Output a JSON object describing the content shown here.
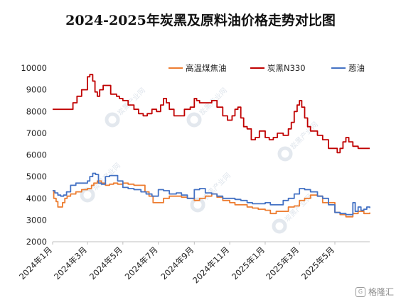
{
  "chart_data": {
    "type": "line",
    "title": "2024-2025年炭黑及原料油价格走势对比图",
    "xlabel": "",
    "ylabel": "",
    "ylim": [
      2000,
      10000
    ],
    "yticks": [
      2000,
      3000,
      4000,
      5000,
      6000,
      7000,
      8000,
      9000,
      10000
    ],
    "xticks": [
      "2024年1月",
      "2024年3月",
      "2024年5月",
      "2024年7月",
      "2024年9月",
      "2024年11月",
      "2025年1月",
      "2025年3月",
      "2025年5月"
    ],
    "x_range": [
      "2024-01-01",
      "2025-06-30"
    ],
    "grid": false,
    "legend_position": "top-right",
    "series": [
      {
        "name": "高温煤焦油",
        "color": "#ed7d31",
        "dates": [
          "2024-01-01",
          "2024-01-03",
          "2024-01-07",
          "2024-01-10",
          "2024-01-14",
          "2024-01-18",
          "2024-01-22",
          "2024-01-26",
          "2024-02-01",
          "2024-02-10",
          "2024-02-20",
          "2024-03-01",
          "2024-03-08",
          "2024-03-12",
          "2024-03-18",
          "2024-03-25",
          "2024-04-01",
          "2024-04-08",
          "2024-04-15",
          "2024-04-22",
          "2024-05-01",
          "2024-05-10",
          "2024-05-20",
          "2024-06-01",
          "2024-06-08",
          "2024-06-15",
          "2024-06-22",
          "2024-07-01",
          "2024-07-10",
          "2024-07-20",
          "2024-08-01",
          "2024-08-10",
          "2024-08-20",
          "2024-09-01",
          "2024-09-10",
          "2024-09-20",
          "2024-10-01",
          "2024-10-10",
          "2024-10-20",
          "2024-11-01",
          "2024-11-10",
          "2024-11-20",
          "2024-12-01",
          "2024-12-10",
          "2024-12-20",
          "2025-01-01",
          "2025-01-10",
          "2025-01-20",
          "2025-02-01",
          "2025-02-10",
          "2025-02-20",
          "2025-03-01",
          "2025-03-10",
          "2025-03-20",
          "2025-04-01",
          "2025-04-10",
          "2025-04-20",
          "2025-05-01",
          "2025-05-10",
          "2025-05-20",
          "2025-06-01",
          "2025-06-10",
          "2025-06-20",
          "2025-06-30"
        ],
        "values": [
          4350,
          4000,
          3850,
          3600,
          3600,
          3800,
          4000,
          4100,
          4200,
          4300,
          4400,
          4450,
          4600,
          4700,
          4800,
          4700,
          4600,
          4650,
          4700,
          4650,
          4700,
          4650,
          4600,
          4600,
          4300,
          4100,
          3800,
          3800,
          4000,
          4100,
          4100,
          4050,
          4000,
          3900,
          4000,
          4100,
          4200,
          4050,
          3900,
          3800,
          3700,
          3700,
          3600,
          3550,
          3500,
          3450,
          3300,
          3400,
          3400,
          3600,
          3650,
          3900,
          4000,
          4150,
          4100,
          3800,
          3800,
          3350,
          3250,
          3150,
          3300,
          3400,
          3300,
          3350
        ]
      },
      {
        "name": "炭黑N330",
        "color": "#c00000",
        "dates": [
          "2024-01-01",
          "2024-01-15",
          "2024-01-28",
          "2024-02-05",
          "2024-02-12",
          "2024-02-20",
          "2024-02-26",
          "2024-03-01",
          "2024-03-05",
          "2024-03-10",
          "2024-03-14",
          "2024-03-18",
          "2024-03-22",
          "2024-03-28",
          "2024-04-05",
          "2024-04-10",
          "2024-04-15",
          "2024-04-20",
          "2024-04-25",
          "2024-05-01",
          "2024-05-10",
          "2024-05-20",
          "2024-05-28",
          "2024-06-05",
          "2024-06-12",
          "2024-06-20",
          "2024-06-28",
          "2024-07-05",
          "2024-07-10",
          "2024-07-15",
          "2024-07-20",
          "2024-07-28",
          "2024-08-05",
          "2024-08-15",
          "2024-08-25",
          "2024-09-01",
          "2024-09-05",
          "2024-09-10",
          "2024-09-20",
          "2024-10-01",
          "2024-10-10",
          "2024-10-20",
          "2024-10-28",
          "2024-11-05",
          "2024-11-10",
          "2024-11-15",
          "2024-11-20",
          "2024-11-25",
          "2024-12-01",
          "2024-12-08",
          "2024-12-15",
          "2024-12-22",
          "2025-01-01",
          "2025-01-08",
          "2025-01-15",
          "2025-01-22",
          "2025-02-01",
          "2025-02-10",
          "2025-02-15",
          "2025-02-20",
          "2025-02-25",
          "2025-03-01",
          "2025-03-05",
          "2025-03-10",
          "2025-03-15",
          "2025-03-20",
          "2025-03-25",
          "2025-04-01",
          "2025-04-10",
          "2025-04-20",
          "2025-04-28",
          "2025-05-01",
          "2025-05-05",
          "2025-05-10",
          "2025-05-15",
          "2025-05-20",
          "2025-05-25",
          "2025-06-01",
          "2025-06-10",
          "2025-06-20",
          "2025-06-30"
        ],
        "values": [
          8100,
          8100,
          8100,
          8400,
          8700,
          9000,
          9000,
          9600,
          9700,
          9400,
          8900,
          8700,
          9000,
          9200,
          9200,
          8800,
          8800,
          8700,
          8600,
          8500,
          8300,
          8100,
          7900,
          7800,
          7900,
          8100,
          8000,
          8300,
          8600,
          8400,
          8100,
          7800,
          7800,
          8100,
          8200,
          8600,
          8500,
          8400,
          8400,
          8500,
          8200,
          7800,
          7600,
          7800,
          8100,
          8200,
          7700,
          7300,
          7200,
          6700,
          6800,
          7100,
          6800,
          6700,
          6800,
          7000,
          6900,
          7200,
          7500,
          8000,
          8300,
          8500,
          8200,
          7700,
          7300,
          7100,
          7100,
          6900,
          6700,
          6300,
          6300,
          6300,
          6100,
          6300,
          6600,
          6800,
          6600,
          6400,
          6300,
          6300,
          6300
        ]
      },
      {
        "name": "蒽油",
        "color": "#4472c4",
        "dates": [
          "2024-01-01",
          "2024-01-05",
          "2024-01-10",
          "2024-01-15",
          "2024-01-20",
          "2024-01-25",
          "2024-02-01",
          "2024-02-10",
          "2024-02-20",
          "2024-03-01",
          "2024-03-05",
          "2024-03-10",
          "2024-03-15",
          "2024-03-20",
          "2024-03-25",
          "2024-04-01",
          "2024-04-08",
          "2024-04-15",
          "2024-04-22",
          "2024-05-01",
          "2024-05-10",
          "2024-05-20",
          "2024-06-01",
          "2024-06-10",
          "2024-06-20",
          "2024-07-01",
          "2024-07-10",
          "2024-07-20",
          "2024-08-01",
          "2024-08-10",
          "2024-08-20",
          "2024-09-01",
          "2024-09-10",
          "2024-09-20",
          "2024-10-01",
          "2024-10-10",
          "2024-10-20",
          "2024-11-01",
          "2024-11-10",
          "2024-11-20",
          "2024-12-01",
          "2024-12-10",
          "2024-12-20",
          "2025-01-01",
          "2025-01-10",
          "2025-01-20",
          "2025-02-01",
          "2025-02-10",
          "2025-02-20",
          "2025-03-01",
          "2025-03-10",
          "2025-03-20",
          "2025-04-01",
          "2025-04-10",
          "2025-04-20",
          "2025-05-01",
          "2025-05-10",
          "2025-05-20",
          "2025-06-01",
          "2025-06-05",
          "2025-06-10",
          "2025-06-15",
          "2025-06-20",
          "2025-06-25",
          "2025-06-30"
        ],
        "values": [
          4350,
          4250,
          4150,
          4100,
          4150,
          4300,
          4600,
          4700,
          4700,
          4800,
          5000,
          5150,
          5100,
          4700,
          4650,
          5000,
          5050,
          5050,
          4800,
          4500,
          4450,
          4400,
          4300,
          4200,
          4100,
          4400,
          4350,
          4200,
          4250,
          4150,
          4000,
          4400,
          4450,
          4250,
          4200,
          4100,
          4000,
          4000,
          3950,
          3900,
          3800,
          3750,
          3750,
          3800,
          3700,
          3700,
          3900,
          4000,
          4200,
          4450,
          4400,
          4300,
          4100,
          4000,
          3700,
          3350,
          3300,
          3250,
          3800,
          3400,
          3600,
          3450,
          3500,
          3600,
          3550
        ]
      }
    ]
  },
  "watermark": {
    "text": "炭黑产业网"
  },
  "badge": {
    "label": "格隆汇"
  }
}
